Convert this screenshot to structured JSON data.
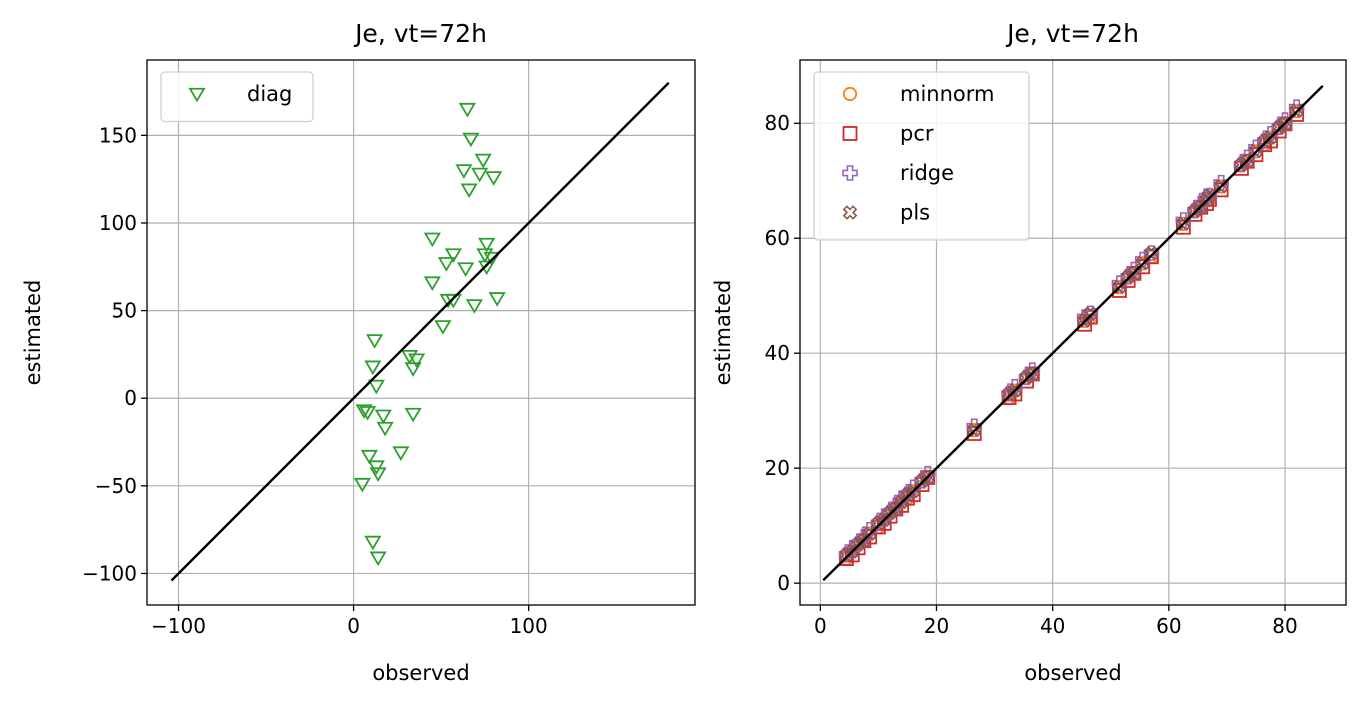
{
  "chart_data": [
    {
      "type": "scatter",
      "title": "Je, vt=72h",
      "xlabel": "observed",
      "ylabel": "estimated",
      "xlim": [
        -118,
        195
      ],
      "ylim": [
        -118,
        193
      ],
      "xticks": [
        -100,
        0,
        100
      ],
      "xtick_labels": [
        "−100",
        "0",
        "100"
      ],
      "yticks": [
        -100,
        -50,
        0,
        50,
        100,
        150
      ],
      "ytick_labels": [
        "−100",
        "−50",
        "0",
        "50",
        "100",
        "150"
      ],
      "grid": true,
      "legend_placement": "top-left",
      "reference_line": {
        "x": [
          -104,
          180
        ],
        "y": [
          -104,
          180
        ],
        "color": "#000000"
      },
      "series": [
        {
          "name": "diag",
          "marker": "triangle-down",
          "color": "#2ca02c",
          "points": [
            [
              65,
              165
            ],
            [
              67,
              148
            ],
            [
              74,
              136
            ],
            [
              63,
              130
            ],
            [
              72,
              128
            ],
            [
              80,
              126
            ],
            [
              66,
              119
            ],
            [
              45,
              91
            ],
            [
              76,
              88
            ],
            [
              57,
              82
            ],
            [
              75,
              82
            ],
            [
              79,
              80
            ],
            [
              53,
              77
            ],
            [
              64,
              74
            ],
            [
              76,
              75
            ],
            [
              45,
              66
            ],
            [
              54,
              56
            ],
            [
              57,
              56
            ],
            [
              69,
              53
            ],
            [
              82,
              57
            ],
            [
              51,
              41
            ],
            [
              12,
              33
            ],
            [
              11,
              18
            ],
            [
              32,
              24
            ],
            [
              36,
              22
            ],
            [
              34,
              17
            ],
            [
              13,
              7
            ],
            [
              6,
              -7
            ],
            [
              8,
              -8
            ],
            [
              17,
              -10
            ],
            [
              34,
              -9
            ],
            [
              18,
              -17
            ],
            [
              27,
              -31
            ],
            [
              9,
              -33
            ],
            [
              13,
              -39
            ],
            [
              14,
              -43
            ],
            [
              5,
              -49
            ],
            [
              11,
              -82
            ],
            [
              14,
              -91
            ]
          ]
        }
      ]
    },
    {
      "type": "scatter",
      "title": "Je, vt=72h",
      "xlabel": "observed",
      "ylabel": "estimated",
      "xlim": [
        -3.5,
        90.5
      ],
      "ylim": [
        -3.8,
        91
      ],
      "xticks": [
        0,
        20,
        40,
        60,
        80
      ],
      "xtick_labels": [
        "0",
        "20",
        "40",
        "60",
        "80"
      ],
      "yticks": [
        0,
        20,
        40,
        60,
        80
      ],
      "ytick_labels": [
        "0",
        "20",
        "40",
        "60",
        "80"
      ],
      "grid": true,
      "legend_placement": "top-left",
      "reference_line": {
        "x": [
          0.5,
          86.5
        ],
        "y": [
          0.5,
          86.5
        ],
        "color": "#000000"
      },
      "x": [
        4.5,
        5.5,
        6.5,
        7.5,
        8.5,
        10,
        11,
        12,
        13,
        14,
        15,
        16,
        17.5,
        18.5,
        26.5,
        32.5,
        33.5,
        35.5,
        36.5,
        45.5,
        46.5,
        51.5,
        53,
        54,
        55.5,
        57,
        62.5,
        64.5,
        65.5,
        66.5,
        67,
        69,
        72.5,
        73.5,
        75,
        76.5,
        77.5,
        79,
        80,
        82
      ],
      "series": [
        {
          "name": "minnorm",
          "marker": "circle",
          "color": "#ff7f0e",
          "jitter": 0.0
        },
        {
          "name": "pcr",
          "marker": "square",
          "color": "#d62728",
          "jitter": -0.35
        },
        {
          "name": "ridge",
          "marker": "plus",
          "color": "#9467bd",
          "jitter": 0.55
        },
        {
          "name": "pls",
          "marker": "x",
          "color": "#8c564b",
          "jitter": 0.15
        }
      ]
    }
  ]
}
